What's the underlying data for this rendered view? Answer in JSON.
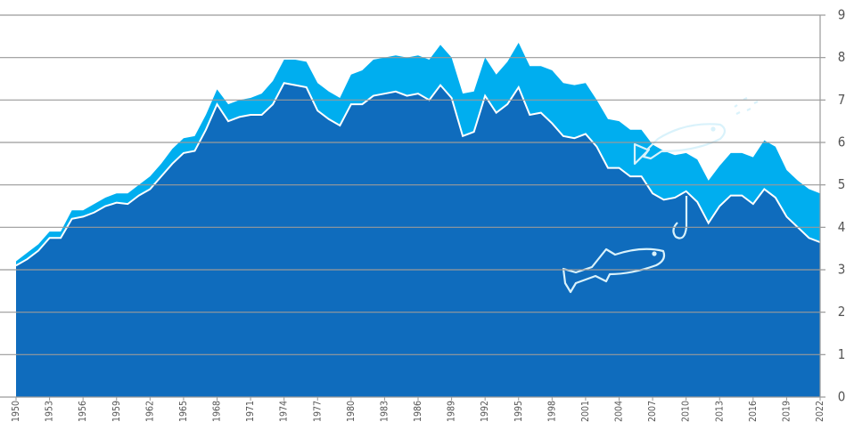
{
  "chart_data": {
    "type": "stacked-area",
    "x": [
      1950,
      1951,
      1952,
      1953,
      1954,
      1955,
      1956,
      1957,
      1958,
      1959,
      1960,
      1961,
      1962,
      1963,
      1964,
      1965,
      1966,
      1967,
      1968,
      1969,
      1970,
      1971,
      1972,
      1973,
      1974,
      1975,
      1976,
      1977,
      1978,
      1979,
      1980,
      1981,
      1982,
      1983,
      1984,
      1985,
      1986,
      1987,
      1988,
      1989,
      1990,
      1991,
      1992,
      1993,
      1994,
      1995,
      1996,
      1997,
      1998,
      1999,
      2000,
      2001,
      2002,
      2003,
      2004,
      2005,
      2006,
      2007,
      2008,
      2009,
      2010,
      2011,
      2012,
      2013,
      2014,
      2015,
      2016,
      2017,
      2018,
      2019,
      2020,
      2021,
      2022
    ],
    "series": [
      {
        "color": "#0f6cbd",
        "values": [
          3.1,
          3.25,
          3.45,
          3.75,
          3.75,
          4.2,
          4.25,
          4.35,
          4.5,
          4.58,
          4.55,
          4.75,
          4.9,
          5.2,
          5.5,
          5.75,
          5.8,
          6.3,
          6.9,
          6.5,
          6.6,
          6.65,
          6.65,
          6.9,
          7.4,
          7.35,
          7.3,
          6.75,
          6.55,
          6.4,
          6.9,
          6.9,
          7.1,
          7.15,
          7.2,
          7.1,
          7.15,
          7.0,
          7.35,
          7.05,
          6.15,
          6.25,
          7.1,
          6.7,
          6.9,
          7.3,
          6.65,
          6.7,
          6.45,
          6.15,
          6.1,
          6.2,
          5.9,
          5.4,
          5.4,
          5.2,
          5.2,
          4.8,
          4.65,
          4.7,
          4.85,
          4.6,
          4.1,
          4.5,
          4.75,
          4.75,
          4.55,
          4.9,
          4.7,
          4.25,
          4.0,
          3.75,
          3.65
        ]
      },
      {
        "color": "#00aeef",
        "values": [
          0.1,
          0.15,
          0.15,
          0.15,
          0.15,
          0.2,
          0.15,
          0.2,
          0.2,
          0.22,
          0.25,
          0.25,
          0.3,
          0.3,
          0.35,
          0.35,
          0.35,
          0.35,
          0.35,
          0.4,
          0.4,
          0.4,
          0.5,
          0.55,
          0.55,
          0.6,
          0.6,
          0.65,
          0.65,
          0.65,
          0.7,
          0.8,
          0.85,
          0.85,
          0.85,
          0.9,
          0.9,
          0.95,
          0.95,
          0.95,
          1.0,
          0.95,
          0.9,
          0.9,
          1.0,
          1.05,
          1.15,
          1.1,
          1.25,
          1.25,
          1.25,
          1.2,
          1.1,
          1.15,
          1.1,
          1.1,
          1.1,
          1.15,
          1.15,
          1.0,
          0.9,
          1.0,
          1.0,
          0.95,
          1.0,
          1.0,
          1.1,
          1.15,
          1.2,
          1.1,
          1.1,
          1.15,
          1.15
        ]
      }
    ],
    "xlim": [
      1950,
      2022
    ],
    "xticks": [
      1950,
      1953,
      1956,
      1959,
      1962,
      1965,
      1968,
      1971,
      1974,
      1977,
      1980,
      1983,
      1986,
      1989,
      1992,
      1995,
      1998,
      2001,
      2004,
      2007,
      2010,
      2013,
      2016,
      2019,
      2022
    ],
    "ylim": [
      0,
      9
    ],
    "yticks": [
      0,
      1,
      2,
      3,
      4,
      5,
      6,
      7,
      8,
      9
    ],
    "grid": true
  }
}
